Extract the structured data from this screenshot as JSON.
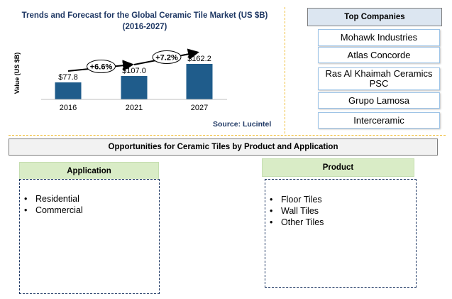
{
  "chart_data": {
    "type": "bar",
    "title": "Trends and Forecast for the Global Ceramic Tile Market (US $B) (2016-2027)",
    "title_lines": [
      "Trends and Forecast for the Global Ceramic Tile Market (US $B)",
      "(2016-2027)"
    ],
    "ylabel": "Value (US $B)",
    "categories": [
      "2016",
      "2021",
      "2027"
    ],
    "values": [
      77.8,
      107.0,
      162.2
    ],
    "data_labels": [
      "$77.8",
      "$107.0",
      "$162.2"
    ],
    "growth_annotations": [
      {
        "from": "2016",
        "to": "2021",
        "label": "+6.6%"
      },
      {
        "from": "2021",
        "to": "2027",
        "label": "+7.2%"
      }
    ],
    "bar_color": "#1f5c8b",
    "source": "Source: Lucintel"
  },
  "top_companies": {
    "header": "Top Companies",
    "items": [
      "Mohawk Industries",
      "Atlas Concorde",
      "Ras Al Khaimah Ceramics PSC",
      "Grupo Lamosa",
      "Interceramic"
    ]
  },
  "opportunities": {
    "title": "Opportunities for Ceramic Tiles by Product and Application",
    "application": {
      "header": "Application",
      "items": [
        "Residential",
        "Commercial"
      ]
    },
    "product": {
      "header": "Product",
      "items": [
        "Floor Tiles",
        "Wall Tiles",
        "Other Tiles"
      ]
    }
  }
}
